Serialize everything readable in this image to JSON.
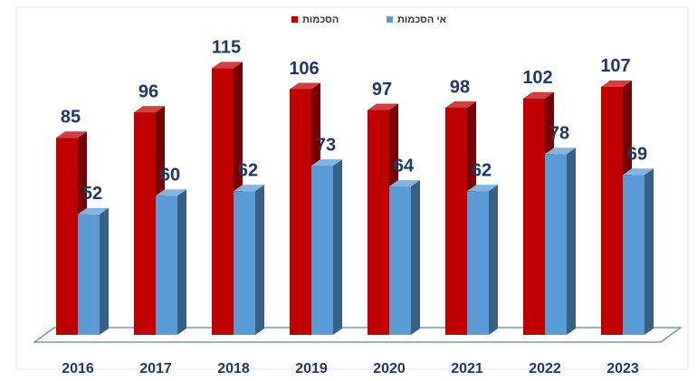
{
  "chart_data": {
    "type": "bar3d",
    "categories": [
      "2016",
      "2017",
      "2018",
      "2019",
      "2020",
      "2021",
      "2022",
      "2023"
    ],
    "series": [
      {
        "name": "הסכמות",
        "color": "#c00000",
        "values": [
          85,
          96,
          115,
          106,
          97,
          98,
          102,
          107
        ]
      },
      {
        "name": "אי הסכמות",
        "color": "#5b9bd5",
        "values": [
          52,
          60,
          62,
          73,
          64,
          62,
          78,
          69
        ]
      }
    ],
    "ylim": [
      0,
      130
    ]
  }
}
